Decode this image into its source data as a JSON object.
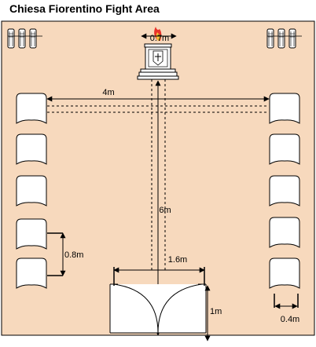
{
  "title": "Chiesa Fiorentino Fight Area",
  "colors": {
    "floor": "#f7d9bd",
    "outline": "#000000",
    "chair_fill": "#ffffff",
    "flame_red": "#e8322a",
    "flame_yellow": "#f7c23a"
  },
  "icons": {
    "pew_group": "church-pew-icon",
    "chair": "chair-icon",
    "altar": "altar-icon",
    "candle": "candle-flame-icon",
    "door": "double-door-icon"
  },
  "dimensions": {
    "altar_width": "0.7m",
    "chair_row_gap": "4m",
    "aisle_length": "6m",
    "chair_spacing": "0.8m",
    "door_width": "1.6m",
    "door_depth": "1m",
    "chair_width": "0.4m"
  }
}
